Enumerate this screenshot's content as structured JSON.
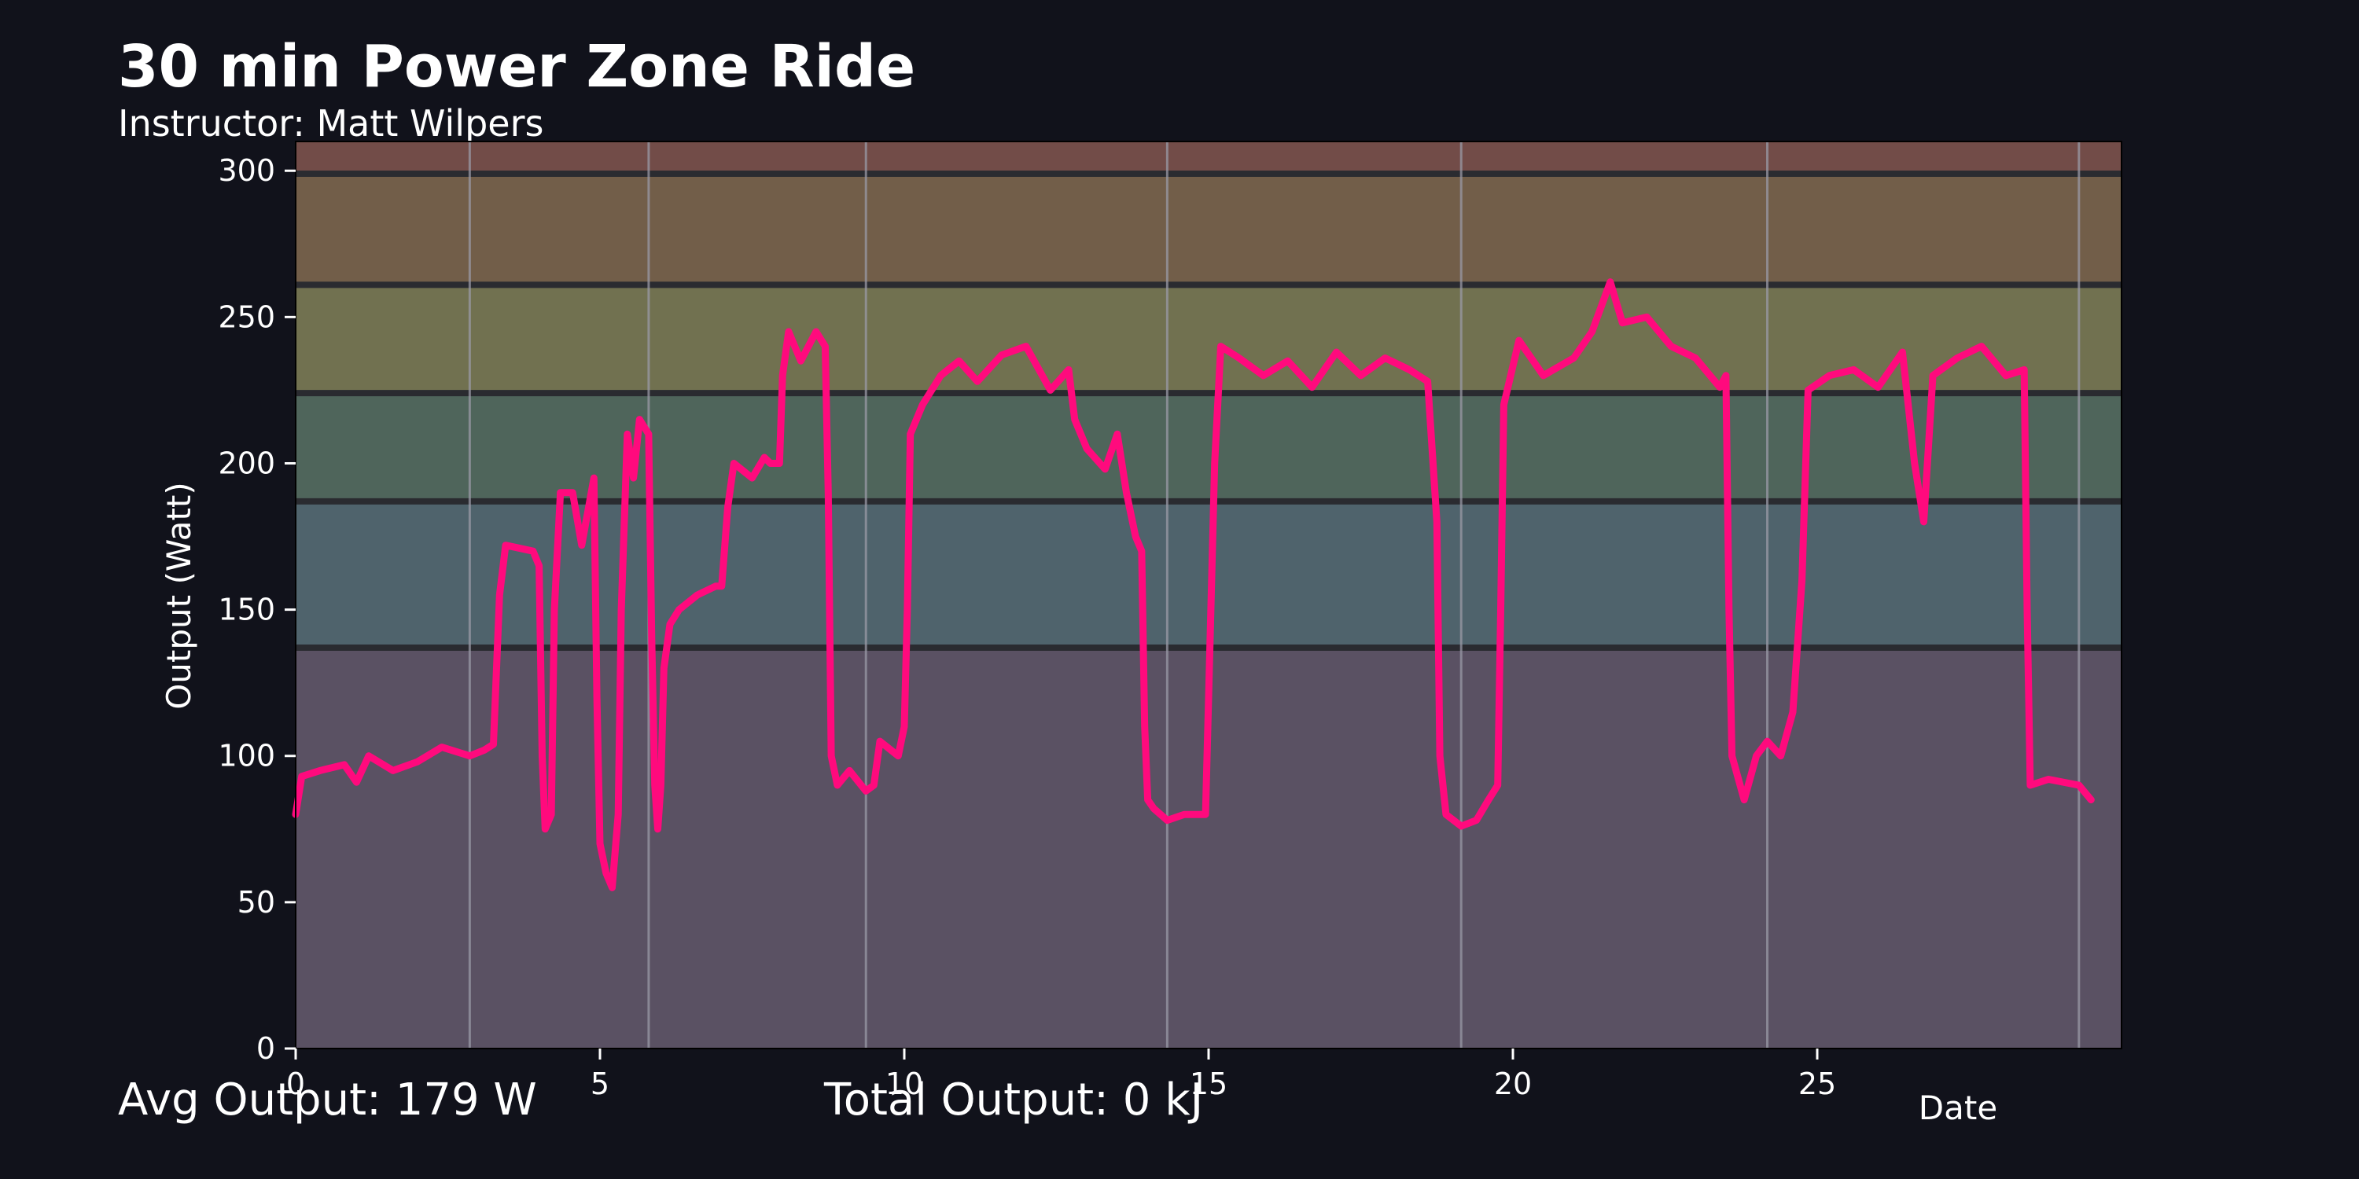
{
  "title": "30 min Power Zone Ride",
  "subtitle": "Instructor: Matt Wilpers",
  "stats": {
    "avg_output": "Avg Output: 179 W",
    "total_output": "Total Output: 0 kJ"
  },
  "colors": {
    "background": "#11121b",
    "line": "#ff0a7d",
    "vline": "#9a9aa6",
    "zone_divider": "#2a2b30"
  },
  "chart_data": {
    "type": "line",
    "xlabel": "Date",
    "ylabel": "Output (Watt)",
    "xlim": [
      0,
      30
    ],
    "ylim": [
      0,
      310
    ],
    "x_ticks": [
      0,
      5,
      10,
      15,
      20,
      25
    ],
    "y_ticks": [
      0,
      50,
      100,
      150,
      200,
      250,
      300
    ],
    "grid": false,
    "zones": [
      {
        "from": 0,
        "to": 137,
        "color": "#5a5163"
      },
      {
        "from": 137,
        "to": 187,
        "color": "#4f636c"
      },
      {
        "from": 187,
        "to": 224,
        "color": "#4f655b"
      },
      {
        "from": 224,
        "to": 261,
        "color": "#717150"
      },
      {
        "from": 261,
        "to": 299,
        "color": "#725e49"
      },
      {
        "from": 299,
        "to": 310,
        "color": "#724c48"
      }
    ],
    "zone_boundaries": [
      137,
      187,
      224,
      261,
      299
    ],
    "vertical_markers": [
      2.86,
      5.8,
      9.37,
      14.32,
      19.15,
      24.18,
      29.3
    ],
    "series": [
      {
        "values": [
          [
            0,
            80
          ],
          [
            0.1,
            93
          ],
          [
            0.4,
            95
          ],
          [
            0.8,
            97
          ],
          [
            1.0,
            91
          ],
          [
            1.2,
            100
          ],
          [
            1.6,
            95
          ],
          [
            2.0,
            98
          ],
          [
            2.4,
            103
          ],
          [
            2.86,
            100
          ],
          [
            3.1,
            102
          ],
          [
            3.25,
            104
          ],
          [
            3.35,
            155
          ],
          [
            3.45,
            172
          ],
          [
            3.9,
            170
          ],
          [
            4.0,
            165
          ],
          [
            4.05,
            100
          ],
          [
            4.1,
            75
          ],
          [
            4.2,
            80
          ],
          [
            4.25,
            150
          ],
          [
            4.35,
            190
          ],
          [
            4.55,
            190
          ],
          [
            4.7,
            172
          ],
          [
            4.9,
            195
          ],
          [
            4.95,
            120
          ],
          [
            5.0,
            70
          ],
          [
            5.1,
            60
          ],
          [
            5.2,
            55
          ],
          [
            5.3,
            80
          ],
          [
            5.35,
            150
          ],
          [
            5.45,
            210
          ],
          [
            5.55,
            195
          ],
          [
            5.65,
            215
          ],
          [
            5.8,
            210
          ],
          [
            5.85,
            140
          ],
          [
            5.9,
            90
          ],
          [
            5.95,
            75
          ],
          [
            6.0,
            90
          ],
          [
            6.05,
            130
          ],
          [
            6.15,
            145
          ],
          [
            6.3,
            150
          ],
          [
            6.6,
            155
          ],
          [
            6.9,
            158
          ],
          [
            7.0,
            158
          ],
          [
            7.1,
            185
          ],
          [
            7.2,
            200
          ],
          [
            7.5,
            195
          ],
          [
            7.7,
            202
          ],
          [
            7.8,
            200
          ],
          [
            7.95,
            200
          ],
          [
            8.0,
            230
          ],
          [
            8.1,
            245
          ],
          [
            8.3,
            235
          ],
          [
            8.55,
            245
          ],
          [
            8.7,
            240
          ],
          [
            8.75,
            190
          ],
          [
            8.8,
            100
          ],
          [
            8.9,
            90
          ],
          [
            9.1,
            95
          ],
          [
            9.37,
            88
          ],
          [
            9.5,
            90
          ],
          [
            9.6,
            105
          ],
          [
            9.9,
            100
          ],
          [
            10.0,
            110
          ],
          [
            10.05,
            150
          ],
          [
            10.1,
            210
          ],
          [
            10.3,
            220
          ],
          [
            10.6,
            230
          ],
          [
            10.9,
            235
          ],
          [
            11.2,
            228
          ],
          [
            11.6,
            237
          ],
          [
            12.0,
            240
          ],
          [
            12.4,
            225
          ],
          [
            12.7,
            232
          ],
          [
            12.8,
            215
          ],
          [
            13.0,
            205
          ],
          [
            13.3,
            198
          ],
          [
            13.5,
            210
          ],
          [
            13.65,
            190
          ],
          [
            13.8,
            175
          ],
          [
            13.9,
            170
          ],
          [
            13.95,
            110
          ],
          [
            14.0,
            85
          ],
          [
            14.1,
            82
          ],
          [
            14.32,
            78
          ],
          [
            14.6,
            80
          ],
          [
            14.95,
            80
          ],
          [
            15.0,
            120
          ],
          [
            15.1,
            200
          ],
          [
            15.2,
            240
          ],
          [
            15.5,
            236
          ],
          [
            15.9,
            230
          ],
          [
            16.3,
            235
          ],
          [
            16.7,
            226
          ],
          [
            17.1,
            238
          ],
          [
            17.5,
            230
          ],
          [
            17.9,
            236
          ],
          [
            18.3,
            232
          ],
          [
            18.6,
            228
          ],
          [
            18.75,
            180
          ],
          [
            18.8,
            100
          ],
          [
            18.9,
            80
          ],
          [
            19.15,
            76
          ],
          [
            19.4,
            78
          ],
          [
            19.6,
            85
          ],
          [
            19.75,
            90
          ],
          [
            19.8,
            150
          ],
          [
            19.85,
            220
          ],
          [
            20.1,
            242
          ],
          [
            20.5,
            230
          ],
          [
            21.0,
            236
          ],
          [
            21.3,
            245
          ],
          [
            21.6,
            262
          ],
          [
            21.8,
            248
          ],
          [
            22.2,
            250
          ],
          [
            22.6,
            240
          ],
          [
            23.0,
            236
          ],
          [
            23.4,
            226
          ],
          [
            23.5,
            230
          ],
          [
            23.55,
            150
          ],
          [
            23.6,
            100
          ],
          [
            23.8,
            85
          ],
          [
            24.0,
            100
          ],
          [
            24.18,
            105
          ],
          [
            24.4,
            100
          ],
          [
            24.6,
            115
          ],
          [
            24.75,
            160
          ],
          [
            24.85,
            225
          ],
          [
            25.2,
            230
          ],
          [
            25.6,
            232
          ],
          [
            26.0,
            226
          ],
          [
            26.4,
            238
          ],
          [
            26.6,
            200
          ],
          [
            26.75,
            180
          ],
          [
            26.9,
            230
          ],
          [
            27.3,
            236
          ],
          [
            27.7,
            240
          ],
          [
            28.1,
            230
          ],
          [
            28.4,
            232
          ],
          [
            28.45,
            150
          ],
          [
            28.5,
            90
          ],
          [
            28.8,
            92
          ],
          [
            29.3,
            90
          ],
          [
            29.5,
            85
          ]
        ]
      }
    ]
  }
}
